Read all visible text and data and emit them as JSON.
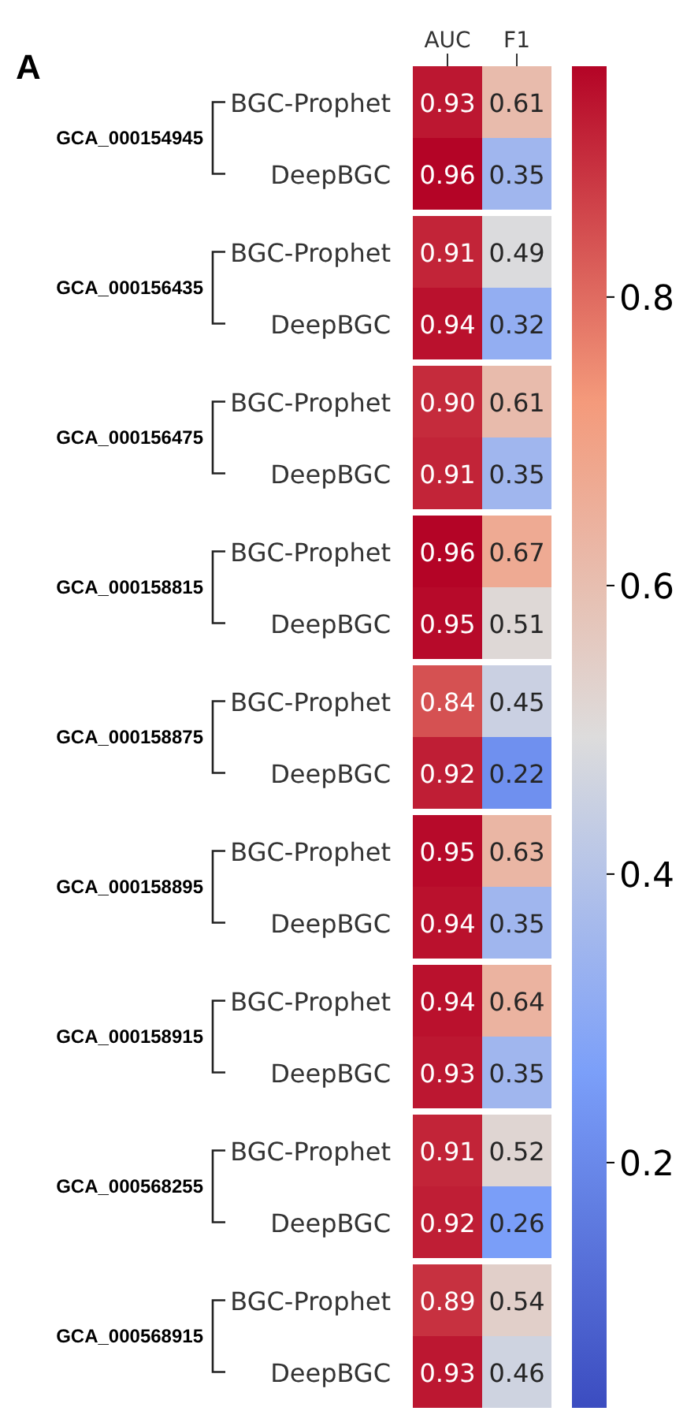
{
  "chart_data": [
    {
      "type": "heatmap",
      "title": "GCA_000154945",
      "categories": [
        "AUC",
        "F1"
      ],
      "y_categories": [
        "BGC-Prophet",
        "DeepBGC"
      ],
      "cells": [
        [
          0.93,
          0.61
        ],
        [
          0.96,
          0.35
        ]
      ],
      "data_labels": true,
      "clim": [
        0.03,
        0.96
      ],
      "cticks": [
        0.2,
        0.4,
        0.6,
        0.8
      ],
      "annotations": [
        "A"
      ]
    },
    {
      "type": "heatmap",
      "title": "GCA_000156435",
      "categories": [
        null,
        null
      ],
      "y_categories": [
        "BGC-Prophet",
        "DeepBGC"
      ],
      "cells": [
        [
          0.91,
          0.49
        ],
        [
          0.94,
          0.32
        ]
      ],
      "data_labels": true,
      "tick_labels": "y"
    },
    {
      "type": "heatmap",
      "title": "GCA_000156475",
      "categories": [
        null,
        null
      ],
      "y_categories": [
        "BGC-Prophet",
        "DeepBGC"
      ],
      "cells": [
        [
          0.9,
          0.61
        ],
        [
          0.91,
          0.35
        ]
      ],
      "cell_labels": [
        [
          "0.90",
          "0.61"
        ],
        [
          "0.91",
          "0.35"
        ]
      ],
      "data_labels": true,
      "tick_labels": "y"
    },
    {
      "type": "heatmap",
      "title": "GCA_000158815",
      "categories": [
        null,
        null
      ],
      "y_categories": [
        "BGC-Prophet",
        "DeepBGC"
      ],
      "cells": [
        [
          0.96,
          0.67
        ],
        [
          0.95,
          0.51
        ]
      ],
      "data_labels": true,
      "tick_labels": "y"
    },
    {
      "type": "heatmap",
      "title": "GCA_000158875",
      "categories": [
        null,
        null
      ],
      "y_categories": [
        "BGC-Prophet",
        "DeepBGC"
      ],
      "cells": [
        [
          0.84,
          0.45
        ],
        [
          0.92,
          0.22
        ]
      ],
      "data_labels": true,
      "tick_labels": "y"
    },
    {
      "type": "heatmap",
      "title": "GCA_000158895",
      "categories": [
        null,
        null
      ],
      "y_categories": [
        "BGC-Prophet",
        "DeepBGC"
      ],
      "cells": [
        [
          0.95,
          0.63
        ],
        [
          0.94,
          0.35
        ]
      ],
      "data_labels": true,
      "tick_labels": "y"
    },
    {
      "type": "heatmap",
      "title": "GCA_000158915",
      "categories": [
        null,
        null
      ],
      "y_categories": [
        "BGC-Prophet",
        "DeepBGC"
      ],
      "cells": [
        [
          0.94,
          0.64
        ],
        [
          0.93,
          0.35
        ]
      ],
      "data_labels": true,
      "tick_labels": "y"
    },
    {
      "type": "heatmap",
      "title": "GCA_000568255",
      "categories": [
        null,
        null
      ],
      "y_categories": [
        "BGC-Prophet",
        "DeepBGC"
      ],
      "cells": [
        [
          0.91,
          0.52
        ],
        [
          0.92,
          0.26
        ]
      ],
      "data_labels": true,
      "tick_labels": "y"
    },
    {
      "type": "heatmap",
      "title": "GCA_000568915",
      "categories": [
        null,
        null
      ],
      "y_categories": [
        "BGC-Prophet",
        "DeepBGC"
      ],
      "cells": [
        [
          0.89,
          0.54
        ],
        [
          0.93,
          0.46
        ]
      ],
      "data_labels": true,
      "tick_labels": "y"
    }
  ]
}
